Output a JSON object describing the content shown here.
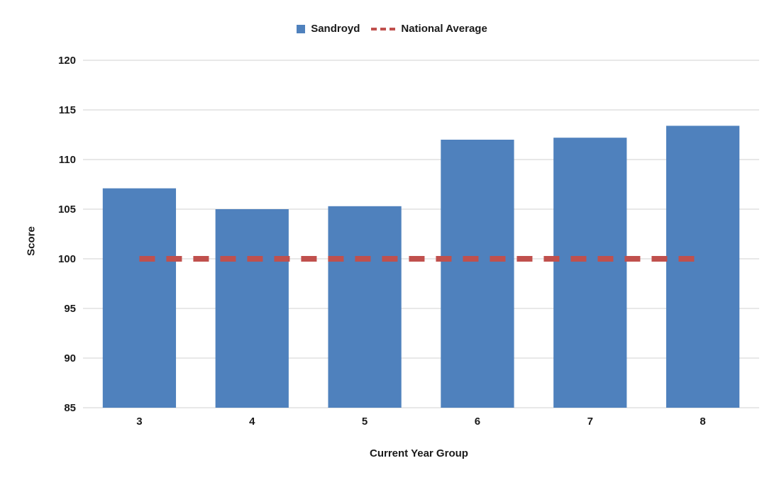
{
  "chart_data": {
    "type": "bar",
    "categories": [
      "3",
      "4",
      "5",
      "6",
      "7",
      "8"
    ],
    "series": [
      {
        "name": "Sandroyd",
        "kind": "bar",
        "color": "#4f81bd",
        "values": [
          107.1,
          105.0,
          105.3,
          112.0,
          112.2,
          113.4
        ]
      },
      {
        "name": "National Average",
        "kind": "line",
        "style": "dashed",
        "color": "#c0504d",
        "values": [
          100,
          100,
          100,
          100,
          100,
          100
        ]
      }
    ],
    "xlabel": "Current Year Group",
    "ylabel": "Score",
    "ylim": [
      85,
      120
    ],
    "yticks": [
      85,
      90,
      95,
      100,
      105,
      110,
      115,
      120
    ],
    "grid": true,
    "legend_position": "top-center"
  }
}
